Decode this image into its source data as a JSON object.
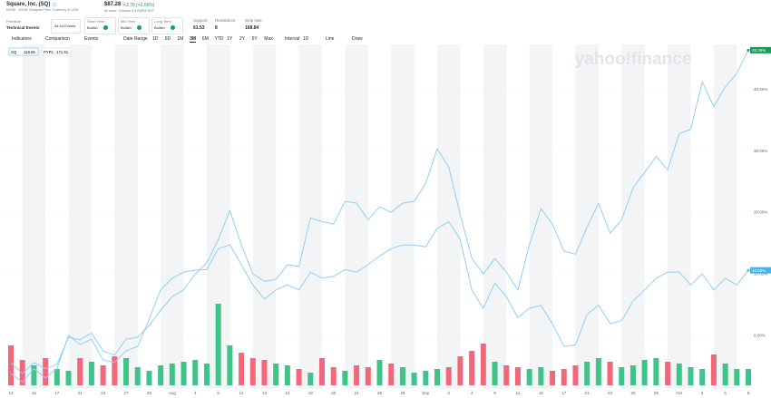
{
  "header": {
    "title": "Square, Inc. (SQ)",
    "exchange": "NYSE - NYSE Delayed Price. Currency in USD",
    "price": "$87.28",
    "change": "+3.76 (+2.06%)",
    "close_note": "At close: October 9 4:00PM EDT",
    "premium": "Premium",
    "technical": "Technical Events",
    "events_button": "All 44 Events",
    "terms": [
      {
        "label": "Short Term",
        "status": "Bullish"
      },
      {
        "label": "Mid Term",
        "status": "Bullish"
      },
      {
        "label": "Long Term",
        "status": "Bullish"
      }
    ],
    "levels": [
      {
        "label": "Support",
        "value": "61.53"
      },
      {
        "label": "Resistance",
        "value": "8"
      },
      {
        "label": "Stop loss",
        "value": "168.84"
      }
    ]
  },
  "toolbar": {
    "items": [
      "Indicators",
      "Comparison",
      "Events",
      "Date Range"
    ],
    "ranges": [
      "1D",
      "5D",
      "1M",
      "3M",
      "6M",
      "YTD",
      "1Y",
      "2Y",
      "5Y",
      "Max"
    ],
    "active_range": "3M",
    "interval": "Interval",
    "interval_value": "1D",
    "line": "Line",
    "draw": "Draw"
  },
  "chart_data": {
    "type": "line",
    "watermark": "yahoo!finance",
    "categories": [
      "13",
      null,
      "15",
      null,
      "17",
      null,
      "21",
      null,
      "23",
      null,
      "27",
      null,
      "29",
      null,
      "Aug",
      null,
      "4",
      null,
      "6",
      null,
      "10",
      null,
      "12",
      null,
      "14",
      null,
      "18",
      null,
      "20",
      null,
      "24",
      null,
      "26",
      null,
      "28",
      null,
      "Sep",
      null,
      "2",
      null,
      "4",
      null,
      "9",
      null,
      "11",
      null,
      "15",
      null,
      "17",
      null,
      "21",
      null,
      "23",
      null,
      "25",
      null,
      "29",
      null,
      "Oct",
      null,
      "2",
      null,
      "6",
      null,
      "8"
    ],
    "series": [
      {
        "name": "SQ",
        "legend_value": 118.65,
        "color": "#8fd0f5",
        "end_label": "46.36%",
        "end_color": "#1a9b5a",
        "values": [
          -4.4,
          -6.2,
          -4.4,
          -5.4,
          -4.7,
          -0.3,
          -0.7,
          0.4,
          -2.5,
          -3.2,
          -0.6,
          -0.3,
          1.6,
          4.1,
          6.3,
          7.4,
          10.0,
          11.8,
          15.6,
          20.3,
          14.7,
          10.0,
          8.8,
          9.1,
          11.5,
          11.2,
          19.1,
          18.5,
          18.1,
          21.8,
          21.5,
          18.8,
          20.9,
          20.0,
          21.5,
          21.8,
          24.7,
          30.3,
          27.4,
          19.6,
          12.6,
          10.0,
          12.5,
          10.3,
          7.4,
          14.7,
          20.6,
          18.1,
          13.7,
          13.2,
          17.6,
          21.5,
          16.6,
          18.8,
          24.0,
          26.5,
          29.1,
          26.9,
          32.8,
          33.5,
          41.2,
          37.2,
          40.4,
          42.6,
          46.36
        ]
      },
      {
        "name": "PYPL",
        "legend_value": 171.51,
        "color": "#8fd0f5",
        "end_label": "10.58%",
        "end_color": "#3fb6ee",
        "values": [
          -6.2,
          -7.6,
          -5.4,
          -6.9,
          -5.4,
          0,
          -1.5,
          -0.6,
          -4.0,
          -4.4,
          -2.5,
          -1.8,
          2.6,
          7.4,
          9.3,
          10.3,
          10.6,
          10.7,
          14.1,
          14.7,
          11.5,
          8.2,
          5.9,
          7.4,
          8.2,
          7.4,
          10.3,
          9.3,
          9.6,
          10.7,
          10.3,
          11.5,
          12.9,
          14.1,
          14.7,
          14.7,
          14.4,
          17.4,
          18.5,
          15.6,
          7.4,
          4.4,
          8.5,
          6.3,
          2.9,
          4.4,
          4.9,
          1.9,
          -1.8,
          -1.5,
          3.4,
          4.9,
          1.9,
          2.4,
          5.6,
          7.4,
          9.3,
          10.3,
          10.3,
          8.2,
          10.0,
          7.4,
          9.3,
          8.2,
          10.58
        ]
      }
    ],
    "volume": {
      "up_color": "#3ec489",
      "down_color": "#f2687a",
      "lim": [
        0,
        50
      ],
      "values": [
        22,
        14,
        11,
        15,
        9,
        8,
        15,
        13,
        11,
        16,
        15,
        10,
        8,
        11,
        12,
        13,
        14,
        12,
        45,
        22,
        18,
        15,
        14,
        12,
        11,
        9,
        7,
        15,
        10,
        8,
        11,
        10,
        14,
        12,
        10,
        7,
        8,
        9,
        10,
        16,
        19,
        23,
        13,
        11,
        10,
        9,
        10,
        8,
        9,
        11,
        13,
        15,
        13,
        10,
        11,
        14,
        15,
        13,
        12,
        10,
        9,
        17,
        12,
        9,
        9
      ]
    },
    "ylim": [
      -8.4,
      47
    ],
    "yticks": [
      {
        "value": 0,
        "label": "0.00%"
      },
      {
        "value": 10,
        "label": "10.00%"
      },
      {
        "value": 20,
        "label": "20.00%"
      },
      {
        "value": 30,
        "label": "30.00%"
      },
      {
        "value": 40,
        "label": "40.00%"
      }
    ],
    "grid": true
  }
}
